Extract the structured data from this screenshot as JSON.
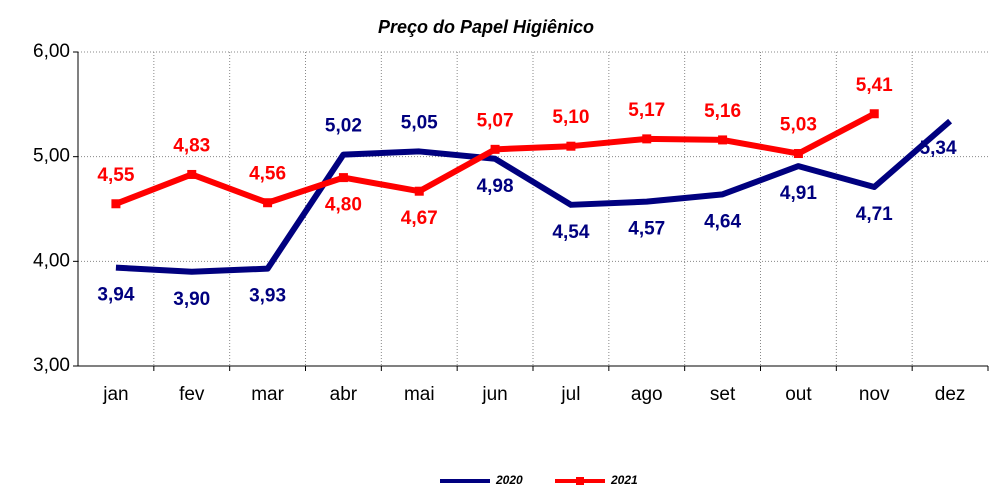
{
  "chart_data": {
    "type": "line",
    "title": "Preço do Papel Higiênico",
    "categories": [
      "jan",
      "fev",
      "mar",
      "abr",
      "mai",
      "jun",
      "jul",
      "ago",
      "set",
      "out",
      "nov",
      "dez"
    ],
    "series": [
      {
        "name": "2020",
        "color": "#00007f",
        "values": [
          3.94,
          3.9,
          3.93,
          5.02,
          5.05,
          4.98,
          4.54,
          4.57,
          4.64,
          4.91,
          4.71,
          5.34
        ],
        "value_labels": [
          "3,94",
          "3,90",
          "3,93",
          "5,02",
          "5,05",
          "4,98",
          "4,54",
          "4,57",
          "4,64",
          "4,91",
          "4,71",
          "5,34"
        ]
      },
      {
        "name": "2021",
        "color": "#ff0000",
        "values": [
          4.55,
          4.83,
          4.56,
          4.8,
          4.67,
          5.07,
          5.1,
          5.17,
          5.16,
          5.03,
          5.41,
          null
        ],
        "value_labels": [
          "4,55",
          "4,83",
          "4,56",
          "4,80",
          "4,67",
          "5,07",
          "5,10",
          "5,17",
          "5,16",
          "5,03",
          "5,41",
          null
        ]
      }
    ],
    "ylim": [
      3,
      6
    ],
    "yticks": [
      {
        "value": 3,
        "label": "3,00"
      },
      {
        "value": 4,
        "label": "4,00"
      },
      {
        "value": 5,
        "label": "5,00"
      },
      {
        "value": 6,
        "label": "6,00"
      }
    ],
    "grid": true,
    "legend": "bottom"
  }
}
